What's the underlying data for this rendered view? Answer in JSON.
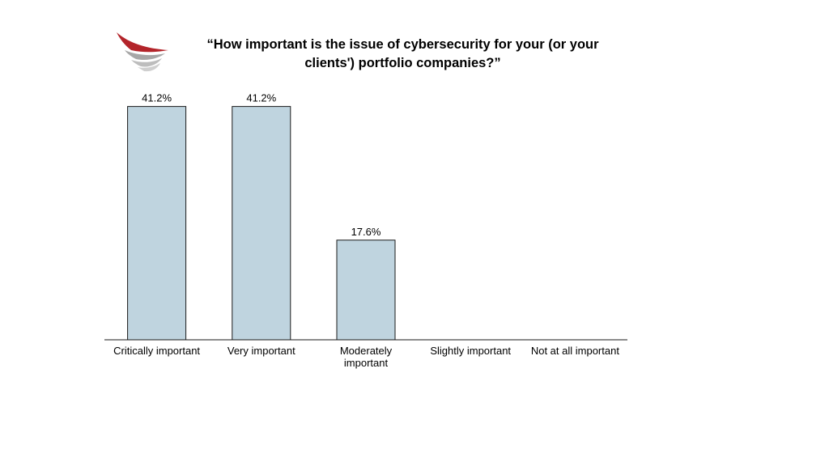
{
  "title_lines": [
    "“How important is the issue of cybersecurity for your (or your",
    "clients') portfolio companies?”"
  ],
  "logo": {
    "icon": "wing-logo-icon",
    "colors": [
      "#b3242a",
      "#9c9c9c"
    ]
  },
  "chart_data": {
    "type": "bar",
    "title": "“How important is the issue of cybersecurity for your (or your clients') portfolio companies?”",
    "categories": [
      [
        "Critically important"
      ],
      [
        "Very important"
      ],
      [
        "Moderately",
        "important"
      ],
      [
        "Slightly important"
      ],
      [
        "Not at all important"
      ]
    ],
    "values": [
      41.2,
      41.2,
      17.6,
      null,
      null
    ],
    "value_labels": [
      "41.2%",
      "41.2%",
      "17.6%",
      "",
      ""
    ],
    "ylim": [
      0,
      45
    ],
    "grid": false,
    "legend": "none",
    "bar_color": "#bfd4df",
    "bar_stroke": "#1a1a1a"
  }
}
